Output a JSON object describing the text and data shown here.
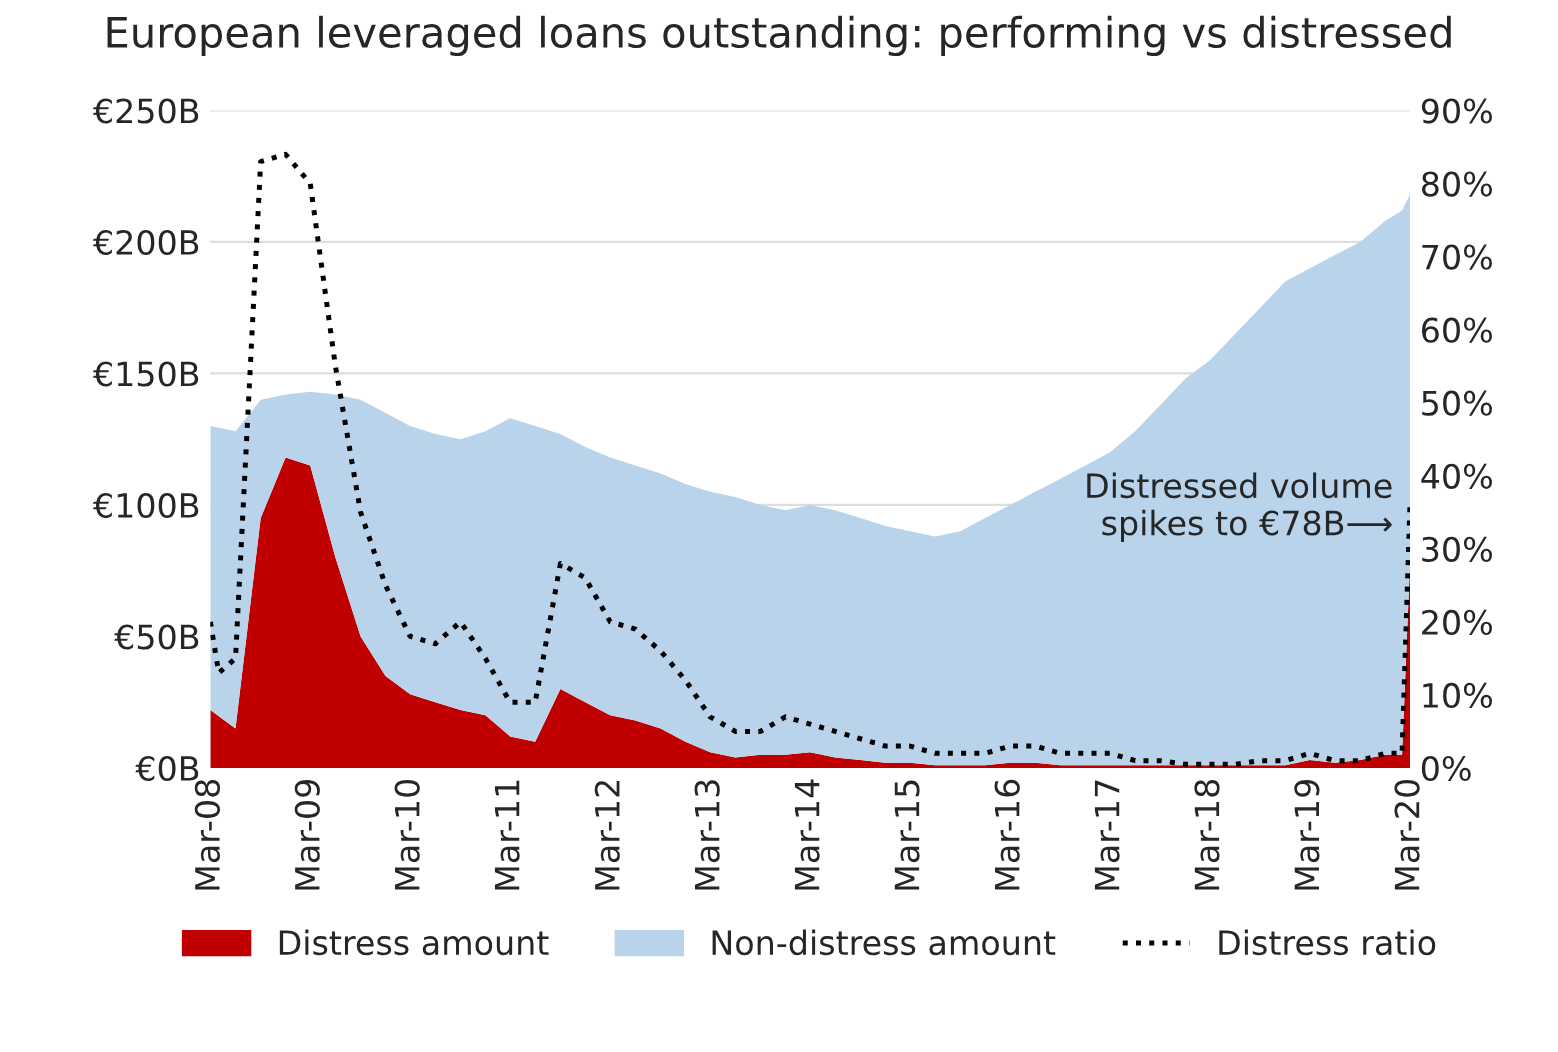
{
  "chart_data": {
    "type": "area",
    "title": "European leveraged loans outstanding: performing vs distressed",
    "stacked": true,
    "x": [
      "2008-03",
      "2008-06",
      "2008-09",
      "2008-12",
      "2009-03",
      "2009-06",
      "2009-09",
      "2009-12",
      "2010-03",
      "2010-06",
      "2010-09",
      "2010-12",
      "2011-03",
      "2011-06",
      "2011-09",
      "2011-12",
      "2012-03",
      "2012-06",
      "2012-09",
      "2012-12",
      "2013-03",
      "2013-06",
      "2013-09",
      "2013-12",
      "2014-03",
      "2014-06",
      "2014-09",
      "2014-12",
      "2015-03",
      "2015-06",
      "2015-09",
      "2015-12",
      "2016-03",
      "2016-06",
      "2016-09",
      "2016-12",
      "2017-03",
      "2017-06",
      "2017-09",
      "2017-12",
      "2018-03",
      "2018-06",
      "2018-09",
      "2018-12",
      "2019-03",
      "2019-06",
      "2019-09",
      "2019-12",
      "2020-02",
      "2020-03"
    ],
    "series": [
      {
        "name": "Distress amount",
        "color": "#c00000",
        "values": [
          22,
          15,
          95,
          118,
          115,
          80,
          50,
          35,
          28,
          25,
          22,
          20,
          12,
          10,
          30,
          25,
          20,
          18,
          15,
          10,
          6,
          4,
          5,
          5,
          6,
          4,
          3,
          2,
          2,
          1,
          1,
          1,
          2,
          2,
          1,
          1,
          1,
          1,
          1,
          1,
          1,
          1,
          1,
          1,
          3,
          2,
          3,
          5,
          5,
          78
        ]
      },
      {
        "name": "Non-distress amount",
        "color": "#b9d3ea",
        "values": [
          108,
          113,
          45,
          24,
          28,
          62,
          90,
          100,
          102,
          102,
          103,
          108,
          121,
          120,
          97,
          97,
          98,
          97,
          97,
          98,
          99,
          99,
          95,
          93,
          94,
          94,
          92,
          90,
          88,
          87,
          89,
          94,
          98,
          103,
          109,
          114,
          119,
          127,
          137,
          147,
          154,
          164,
          174,
          184,
          187,
          193,
          197,
          203,
          207,
          140
        ]
      },
      {
        "name": "Distress ratio",
        "type": "line",
        "axis": "y2",
        "color": "#000000",
        "line_style": "dotted",
        "x": [
          "2008-03",
          "2008-04",
          "2008-06",
          "2008-08",
          "2008-09",
          "2008-12",
          "2009-03",
          "2009-06",
          "2009-09",
          "2009-12",
          "2010-03",
          "2010-06",
          "2010-09",
          "2010-12",
          "2011-03",
          "2011-06",
          "2011-09",
          "2011-12",
          "2012-03",
          "2012-06",
          "2012-09",
          "2012-12",
          "2013-03",
          "2013-06",
          "2013-09",
          "2013-12",
          "2014-03",
          "2014-06",
          "2014-09",
          "2014-12",
          "2015-03",
          "2015-06",
          "2015-09",
          "2015-12",
          "2016-03",
          "2016-06",
          "2016-09",
          "2016-12",
          "2017-03",
          "2017-06",
          "2017-09",
          "2017-12",
          "2018-03",
          "2018-06",
          "2018-09",
          "2018-12",
          "2019-03",
          "2019-06",
          "2019-09",
          "2019-12",
          "2020-02",
          "2020-03"
        ],
        "values": [
          20,
          13,
          15,
          60,
          83,
          84,
          80,
          55,
          35,
          25,
          18,
          17,
          20,
          15,
          9,
          9,
          28,
          26,
          20,
          19,
          16,
          12,
          7,
          5,
          5,
          7,
          6,
          5,
          4,
          3,
          3,
          2,
          2,
          2,
          3,
          3,
          2,
          2,
          2,
          1,
          1,
          0.5,
          0.5,
          0.5,
          1,
          1,
          2,
          1,
          1,
          2,
          2,
          36
        ]
      }
    ],
    "xlim": [
      "2008-03",
      "2020-03"
    ],
    "xticks": [
      {
        "value": "2008-03",
        "label": "Mar-08"
      },
      {
        "value": "2009-03",
        "label": "Mar-09"
      },
      {
        "value": "2010-03",
        "label": "Mar-10"
      },
      {
        "value": "2011-03",
        "label": "Mar-11"
      },
      {
        "value": "2012-03",
        "label": "Mar-12"
      },
      {
        "value": "2013-03",
        "label": "Mar-13"
      },
      {
        "value": "2014-03",
        "label": "Mar-14"
      },
      {
        "value": "2015-03",
        "label": "Mar-15"
      },
      {
        "value": "2016-03",
        "label": "Mar-16"
      },
      {
        "value": "2017-03",
        "label": "Mar-17"
      },
      {
        "value": "2018-03",
        "label": "Mar-18"
      },
      {
        "value": "2019-03",
        "label": "Mar-19"
      },
      {
        "value": "2020-03",
        "label": "Mar-20"
      }
    ],
    "ylim": [
      0,
      250
    ],
    "yticks": [
      {
        "value": 0,
        "label": "€0B"
      },
      {
        "value": 50,
        "label": "€50B"
      },
      {
        "value": 100,
        "label": "€100B"
      },
      {
        "value": 150,
        "label": "€150B"
      },
      {
        "value": 200,
        "label": "€200B"
      },
      {
        "value": 250,
        "label": "€250B"
      }
    ],
    "y2lim": [
      0,
      90
    ],
    "y2ticks": [
      {
        "value": 0,
        "label": "0%"
      },
      {
        "value": 10,
        "label": "10%"
      },
      {
        "value": 20,
        "label": "20%"
      },
      {
        "value": 30,
        "label": "30%"
      },
      {
        "value": 40,
        "label": "40%"
      },
      {
        "value": 50,
        "label": "50%"
      },
      {
        "value": 60,
        "label": "60%"
      },
      {
        "value": 70,
        "label": "70%"
      },
      {
        "value": 80,
        "label": "80%"
      },
      {
        "value": 90,
        "label": "90%"
      }
    ],
    "annotations": [
      {
        "text": "Distressed volume\nspikes to €78B⟶",
        "x": "2020-03",
        "y": 78
      }
    ],
    "grid": "y",
    "legend": "bottom"
  }
}
